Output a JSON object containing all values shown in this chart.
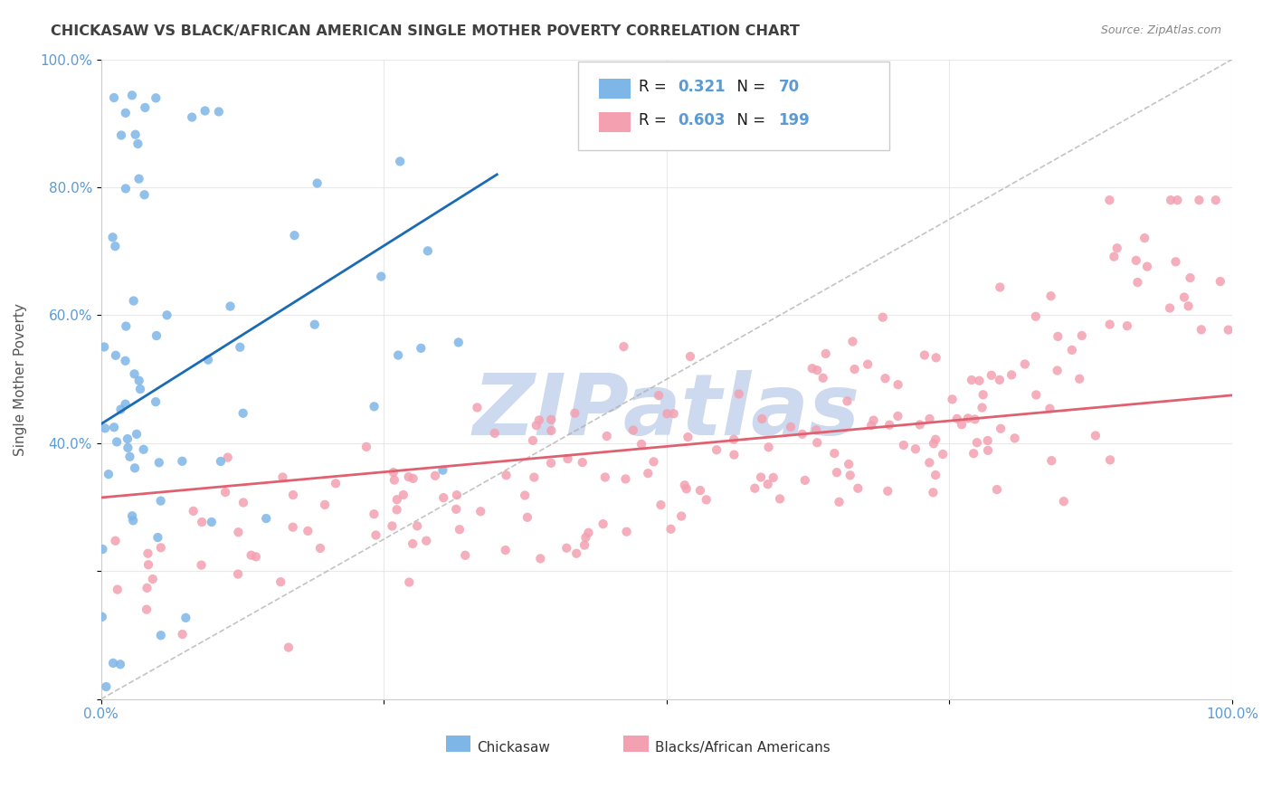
{
  "title": "CHICKASAW VS BLACK/AFRICAN AMERICAN SINGLE MOTHER POVERTY CORRELATION CHART",
  "source": "Source: ZipAtlas.com",
  "ylabel": "Single Mother Poverty",
  "legend_label1": "Chickasaw",
  "legend_label2": "Blacks/African Americans",
  "r1": 0.321,
  "n1": 70,
  "r2": 0.603,
  "n2": 199,
  "color_blue": "#7eb6e8",
  "color_pink": "#f4a0b0",
  "line_blue": "#1a6bb5",
  "line_pink": "#e06070",
  "watermark_color": "#ccd9ee",
  "background": "#ffffff",
  "grid_color": "#e0e0e0",
  "title_color": "#404040",
  "axis_label_color": "#5b9bd5"
}
